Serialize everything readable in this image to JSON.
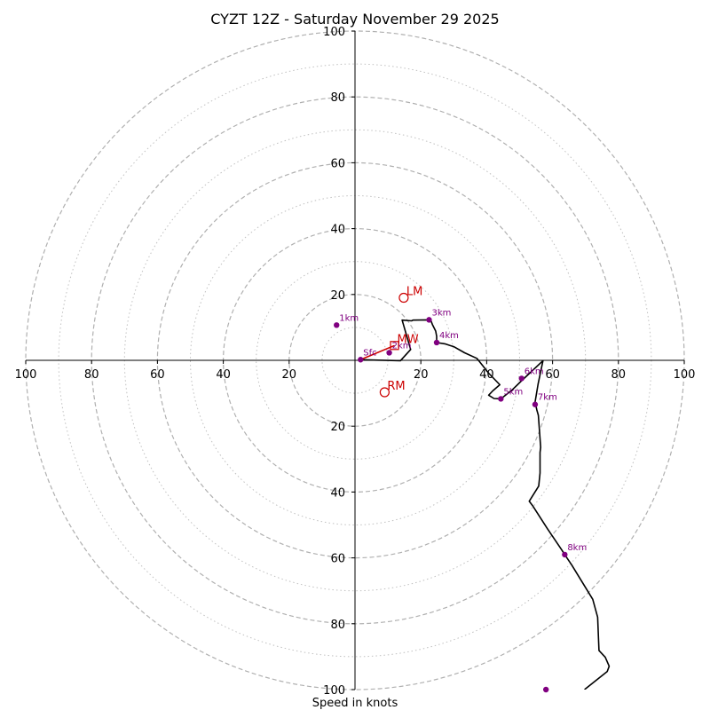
{
  "chart_data": {
    "type": "line",
    "title": "CYZT 12Z - Saturday November 29 2025",
    "xlabel": "Speed in knots",
    "ylabel": "",
    "xlim": [
      -100,
      100
    ],
    "ylim": [
      -100,
      100
    ],
    "ring_dashed": [
      20,
      40,
      60,
      80,
      100
    ],
    "ring_dotted": [
      10,
      30,
      50,
      70,
      90
    ],
    "ticks": [
      {
        "value": -100,
        "label": "100"
      },
      {
        "value": -80,
        "label": "80"
      },
      {
        "value": -60,
        "label": "60"
      },
      {
        "value": -40,
        "label": "40"
      },
      {
        "value": -20,
        "label": "20"
      },
      {
        "value": 20,
        "label": "20"
      },
      {
        "value": 40,
        "label": "40"
      },
      {
        "value": 60,
        "label": "60"
      },
      {
        "value": 80,
        "label": "80"
      },
      {
        "value": 100,
        "label": "100"
      }
    ],
    "hodograph": {
      "name": "wind trace",
      "color": "#000000",
      "points": [
        [
          1.7,
          0.2
        ],
        [
          13.8,
          -0.1
        ],
        [
          16.9,
          3.3
        ],
        [
          14.3,
          12.2
        ],
        [
          17.2,
          12.0
        ],
        [
          17.6,
          12.2
        ],
        [
          22.4,
          12.3
        ],
        [
          23.0,
          12.2
        ],
        [
          23.5,
          10.9
        ],
        [
          24.5,
          8.9
        ],
        [
          24.8,
          7.3
        ],
        [
          24.8,
          5.4
        ],
        [
          27.3,
          5.0
        ],
        [
          30.1,
          4.1
        ],
        [
          33.3,
          2.3
        ],
        [
          37.0,
          0.6
        ],
        [
          38.7,
          -1.5
        ],
        [
          40.6,
          -3.9
        ],
        [
          44.0,
          -7.4
        ],
        [
          41.8,
          -9.3
        ],
        [
          40.6,
          -10.6
        ],
        [
          42.2,
          -11.6
        ],
        [
          44.3,
          -11.7
        ],
        [
          47.6,
          -9.1
        ],
        [
          50.6,
          -6.2
        ],
        [
          57.1,
          -0.1
        ],
        [
          55.6,
          -7.2
        ],
        [
          54.7,
          -12.7
        ],
        [
          55.2,
          -15.0
        ],
        [
          55.7,
          -16.7
        ],
        [
          56.4,
          -26.4
        ],
        [
          56.2,
          -28.0
        ],
        [
          56.2,
          -34.2
        ],
        [
          55.8,
          -38.2
        ],
        [
          52.9,
          -42.8
        ],
        [
          53.9,
          -44.1
        ],
        [
          58.4,
          -51.1
        ],
        [
          62.8,
          -57.6
        ],
        [
          63.7,
          -59.0
        ],
        [
          65.8,
          -62.1
        ],
        [
          72.2,
          -72.6
        ],
        [
          73.7,
          -78.0
        ],
        [
          74.1,
          -88.1
        ],
        [
          76.0,
          -90.2
        ],
        [
          77.2,
          -92.9
        ],
        [
          76.6,
          -94.5
        ],
        [
          69.7,
          -100.0
        ]
      ]
    },
    "height_markers": [
      {
        "label": "Sfc",
        "x": 1.7,
        "y": 0.2
      },
      {
        "label": "1km",
        "x": -5.6,
        "y": 10.7
      },
      {
        "label": "2km",
        "x": 10.4,
        "y": 2.3
      },
      {
        "label": "3km",
        "x": 22.5,
        "y": 12.3
      },
      {
        "label": "4km",
        "x": 24.8,
        "y": 5.4
      },
      {
        "label": "5km",
        "x": 44.3,
        "y": -11.7
      },
      {
        "label": "6km",
        "x": 50.6,
        "y": -5.5
      },
      {
        "label": "7km",
        "x": 54.7,
        "y": -13.4
      },
      {
        "label": "8km",
        "x": 63.7,
        "y": -59.0
      },
      {
        "label": "",
        "x": 58.0,
        "y": -100.0
      }
    ],
    "inflow_segment": {
      "from": [
        1.7,
        0.2
      ],
      "to": [
        12.0,
        4.5
      ],
      "color": "#cc0000"
    },
    "motions": [
      {
        "label": "LM",
        "x": 14.8,
        "y": 19.0,
        "marker": "circle"
      },
      {
        "label": "RM",
        "x": 9.0,
        "y": -9.7,
        "marker": "circle"
      },
      {
        "label": "MW",
        "x": 12.0,
        "y": 4.5,
        "marker": "square"
      }
    ],
    "colors": {
      "marker": "#800080",
      "motion": "#cc0000",
      "ring": "#b0b0b0",
      "axis": "#000000"
    }
  }
}
